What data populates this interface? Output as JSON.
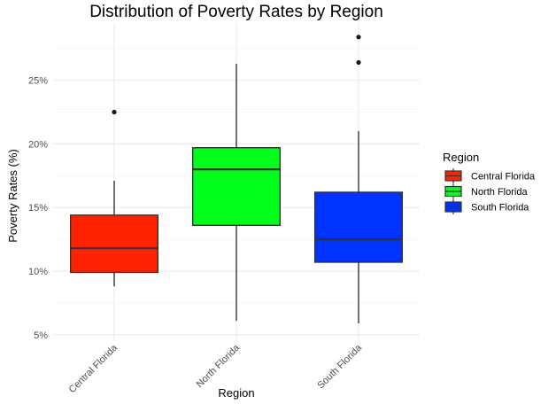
{
  "chart_data": {
    "type": "box",
    "title": "Distribution of Poverty Rates by Region",
    "xlabel": "Region",
    "ylabel": "Poverty Rates (%)",
    "y_ticks": [
      5,
      10,
      15,
      20,
      25
    ],
    "y_tick_labels": [
      "5%",
      "10%",
      "15%",
      "20%",
      "25%"
    ],
    "ylim": [
      4.5,
      29.5
    ],
    "grid": true,
    "legend": {
      "title": "Region",
      "position": "right"
    },
    "categories": [
      "Central Florida",
      "North Florida",
      "South Florida"
    ],
    "series": [
      {
        "name": "Central Florida",
        "color": "#ff2200",
        "whisker_low": 8.8,
        "q1": 9.9,
        "median": 11.8,
        "q3": 14.4,
        "whisker_high": 17.1,
        "outliers": [
          22.5
        ]
      },
      {
        "name": "North Florida",
        "color": "#00ff1a",
        "whisker_low": 6.1,
        "q1": 13.6,
        "median": 18.0,
        "q3": 19.7,
        "whisker_high": 26.3,
        "outliers": []
      },
      {
        "name": "South Florida",
        "color": "#0033ff",
        "whisker_low": 5.9,
        "q1": 10.7,
        "median": 12.5,
        "q3": 16.2,
        "whisker_high": 21.0,
        "outliers": [
          26.4,
          28.4
        ]
      }
    ]
  }
}
